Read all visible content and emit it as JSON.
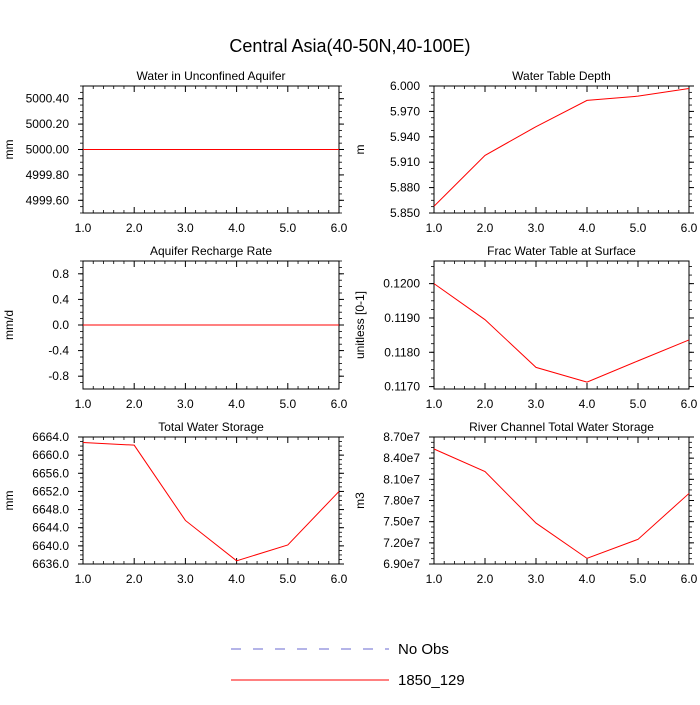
{
  "figure_title": "Central Asia(40-50N,40-100E)",
  "line_color": "#ff0000",
  "obs_color": "#6a6ad0",
  "legend": [
    {
      "label": "No Obs",
      "style": "dashed",
      "color": "#6a6ad0"
    },
    {
      "label": "1850_129",
      "style": "solid",
      "color": "#ff0000"
    }
  ],
  "chart_data": [
    {
      "type": "line",
      "title": "Water in Unconfined Aquifer",
      "ylabel": "mm",
      "xlim": [
        1,
        6
      ],
      "xticks": [
        "1.0",
        "2.0",
        "3.0",
        "4.0",
        "5.0",
        "6.0"
      ],
      "ylim": [
        4999.5,
        5000.5
      ],
      "yticks": [
        4999.6,
        4999.8,
        5000.0,
        5000.2,
        5000.4
      ],
      "ytick_labels": [
        "4999.60",
        "4999.80",
        "5000.00",
        "5000.20",
        "5000.40"
      ],
      "x": [
        1,
        2,
        3,
        4,
        5,
        6
      ],
      "series": [
        {
          "name": "1850_129",
          "values": [
            5000.0,
            5000.0,
            5000.0,
            5000.0,
            5000.0,
            5000.0
          ]
        }
      ]
    },
    {
      "type": "line",
      "title": "Water Table Depth",
      "ylabel": "m",
      "xlim": [
        1,
        6
      ],
      "xticks": [
        "1.0",
        "2.0",
        "3.0",
        "4.0",
        "5.0",
        "6.0"
      ],
      "ylim": [
        5.85,
        6.0
      ],
      "yticks": [
        5.85,
        5.88,
        5.91,
        5.94,
        5.97,
        6.0
      ],
      "ytick_labels": [
        "5.850",
        "5.880",
        "5.910",
        "5.940",
        "5.970",
        "6.000"
      ],
      "x": [
        1,
        2,
        3,
        4,
        5,
        6
      ],
      "series": [
        {
          "name": "1850_129",
          "values": [
            5.858,
            5.918,
            5.952,
            5.983,
            5.988,
            5.997
          ]
        }
      ]
    },
    {
      "type": "line",
      "title": "Aquifer Recharge Rate",
      "ylabel": "mm/d",
      "xlim": [
        1,
        6
      ],
      "xticks": [
        "1.0",
        "2.0",
        "3.0",
        "4.0",
        "5.0",
        "6.0"
      ],
      "ylim": [
        -1.0,
        1.0
      ],
      "yticks": [
        -0.8,
        -0.4,
        0.0,
        0.4,
        0.8
      ],
      "ytick_labels": [
        "-0.8",
        "-0.4",
        "0.0",
        "0.4",
        "0.8"
      ],
      "x": [
        1,
        2,
        3,
        4,
        5,
        6
      ],
      "series": [
        {
          "name": "1850_129",
          "values": [
            0.0,
            0.0,
            0.0,
            0.0,
            0.0,
            0.0
          ]
        }
      ]
    },
    {
      "type": "line",
      "title": "Frac Water Table at Surface",
      "ylabel": "unitless [0-1]",
      "xlim": [
        1,
        6
      ],
      "xticks": [
        "1.0",
        "2.0",
        "3.0",
        "4.0",
        "5.0",
        "6.0"
      ],
      "ylim": [
        0.11693,
        0.12066
      ],
      "yticks": [
        0.117,
        0.118,
        0.119,
        0.12
      ],
      "ytick_labels": [
        "0.1170",
        "0.1180",
        "0.1190",
        "0.1200"
      ],
      "x": [
        1,
        2,
        3,
        4,
        5,
        6
      ],
      "series": [
        {
          "name": "1850_129",
          "values": [
            0.12,
            0.11895,
            0.11756,
            0.11713,
            0.11775,
            0.11836
          ]
        }
      ]
    },
    {
      "type": "line",
      "title": "Total Water Storage",
      "ylabel": "mm",
      "xlim": [
        1,
        6
      ],
      "xticks": [
        "1.0",
        "2.0",
        "3.0",
        "4.0",
        "5.0",
        "6.0"
      ],
      "ylim": [
        6636.0,
        6664.0
      ],
      "yticks": [
        6636,
        6640,
        6644,
        6648,
        6652,
        6656,
        6660,
        6664
      ],
      "ytick_labels": [
        "6636.0",
        "6640.0",
        "6644.0",
        "6648.0",
        "6652.0",
        "6656.0",
        "6660.0",
        "6664.0"
      ],
      "x": [
        1,
        2,
        3,
        4,
        5,
        6
      ],
      "series": [
        {
          "name": "1850_129",
          "values": [
            6662.8,
            6662.2,
            6645.6,
            6636.7,
            6640.2,
            6652.0
          ]
        }
      ]
    },
    {
      "type": "line",
      "title": "River Channel Total Water Storage",
      "ylabel": "m3",
      "xlim": [
        1,
        6
      ],
      "xticks": [
        "1.0",
        "2.0",
        "3.0",
        "4.0",
        "5.0",
        "6.0"
      ],
      "ylim": [
        69000000,
        87000000
      ],
      "yticks": [
        69000000,
        72000000,
        75000000,
        78000000,
        81000000,
        84000000,
        87000000
      ],
      "ytick_labels": [
        "6.90e7",
        "7.20e7",
        "7.50e7",
        "7.80e7",
        "8.10e7",
        "8.40e7",
        "8.70e7"
      ],
      "x": [
        1,
        2,
        3,
        4,
        5,
        6
      ],
      "series": [
        {
          "name": "1850_129",
          "values": [
            85300000,
            82100000,
            74800000,
            69800000,
            72500000,
            79000000
          ]
        }
      ]
    }
  ]
}
